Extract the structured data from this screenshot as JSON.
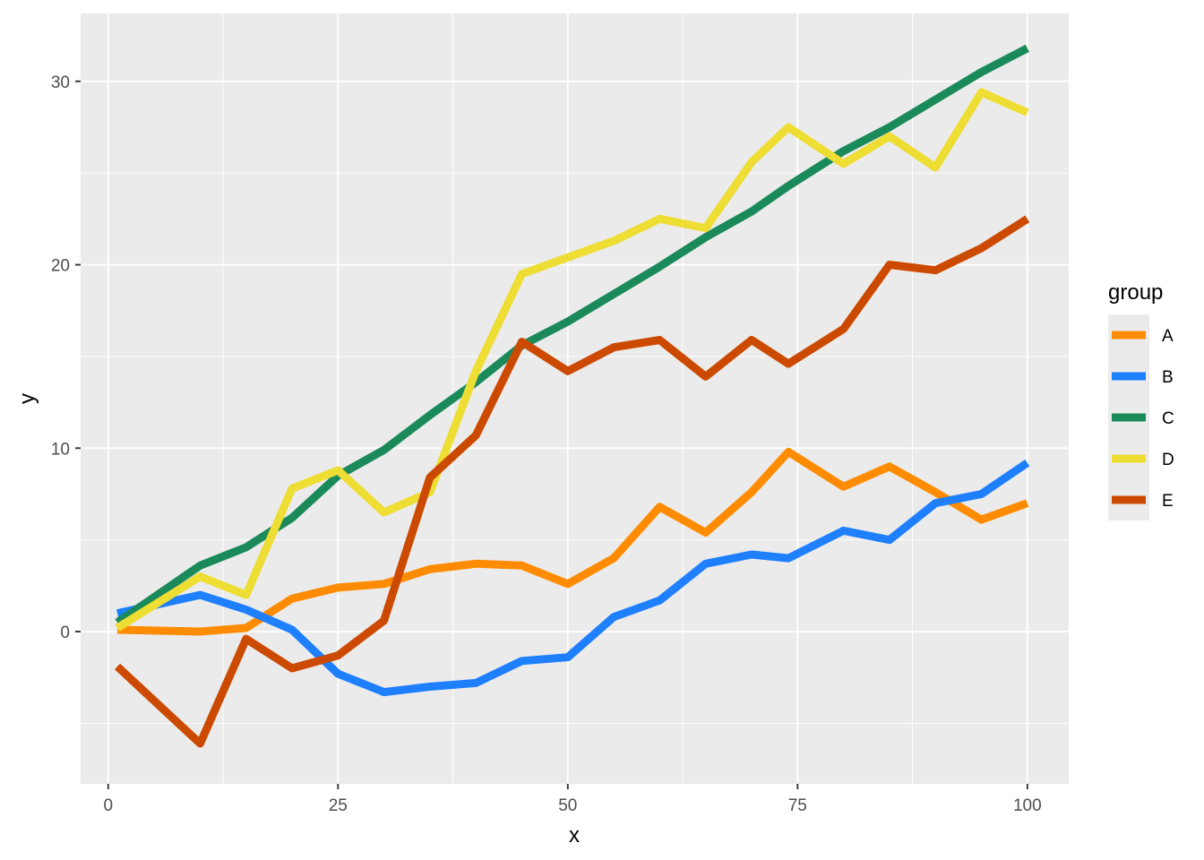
{
  "chart_data": {
    "type": "line",
    "xlabel": "x",
    "ylabel": "y",
    "xlim": [
      -3,
      104.5
    ],
    "ylim": [
      -8.3,
      33.7
    ],
    "x_ticks": [
      0,
      25,
      50,
      75,
      100
    ],
    "x_tick_labels": [
      "0",
      "25",
      "50",
      "75",
      "100"
    ],
    "y_ticks": [
      0,
      10,
      20,
      30
    ],
    "y_tick_labels": [
      "0",
      "10",
      "20",
      "30"
    ],
    "grid": true,
    "legend": {
      "title": "group",
      "position": "right"
    },
    "x_keys": [
      1,
      10,
      15,
      20,
      25,
      30,
      35,
      40,
      45,
      50,
      55,
      60,
      65,
      70,
      74,
      80,
      85,
      90,
      95,
      100
    ],
    "series": [
      {
        "name": "A",
        "color": "#FF8C00",
        "values": [
          0.1,
          0.0,
          0.2,
          1.8,
          2.4,
          2.6,
          3.4,
          3.7,
          3.6,
          2.6,
          4.0,
          6.8,
          5.4,
          7.6,
          9.8,
          7.9,
          9.0,
          7.6,
          6.1,
          7.0
        ]
      },
      {
        "name": "B",
        "color": "#1E7FFF",
        "values": [
          1.0,
          2.0,
          1.2,
          0.1,
          -2.3,
          -3.3,
          -3.0,
          -2.8,
          -1.6,
          -1.4,
          0.8,
          1.7,
          3.7,
          4.2,
          4.0,
          5.5,
          5.0,
          7.0,
          7.5,
          9.2
        ]
      },
      {
        "name": "C",
        "color": "#1A8A5A",
        "values": [
          0.5,
          3.6,
          4.6,
          6.2,
          8.5,
          9.9,
          11.8,
          13.6,
          15.6,
          16.9,
          18.4,
          19.9,
          21.5,
          22.9,
          24.3,
          26.2,
          27.5,
          29.0,
          30.5,
          31.8
        ]
      },
      {
        "name": "D",
        "color": "#EEDD33",
        "values": [
          0.2,
          3.0,
          2.0,
          7.8,
          8.8,
          6.5,
          7.6,
          14.2,
          19.5,
          20.4,
          21.3,
          22.5,
          22.0,
          25.6,
          27.5,
          25.5,
          27.0,
          25.3,
          29.4,
          28.3
        ]
      },
      {
        "name": "E",
        "color": "#CC4A00",
        "values": [
          -1.9,
          -6.1,
          -0.4,
          -2.0,
          -1.3,
          0.6,
          8.4,
          10.7,
          15.8,
          14.2,
          15.5,
          15.9,
          13.9,
          15.9,
          14.6,
          16.5,
          20.0,
          19.7,
          20.9,
          22.5
        ]
      }
    ]
  }
}
